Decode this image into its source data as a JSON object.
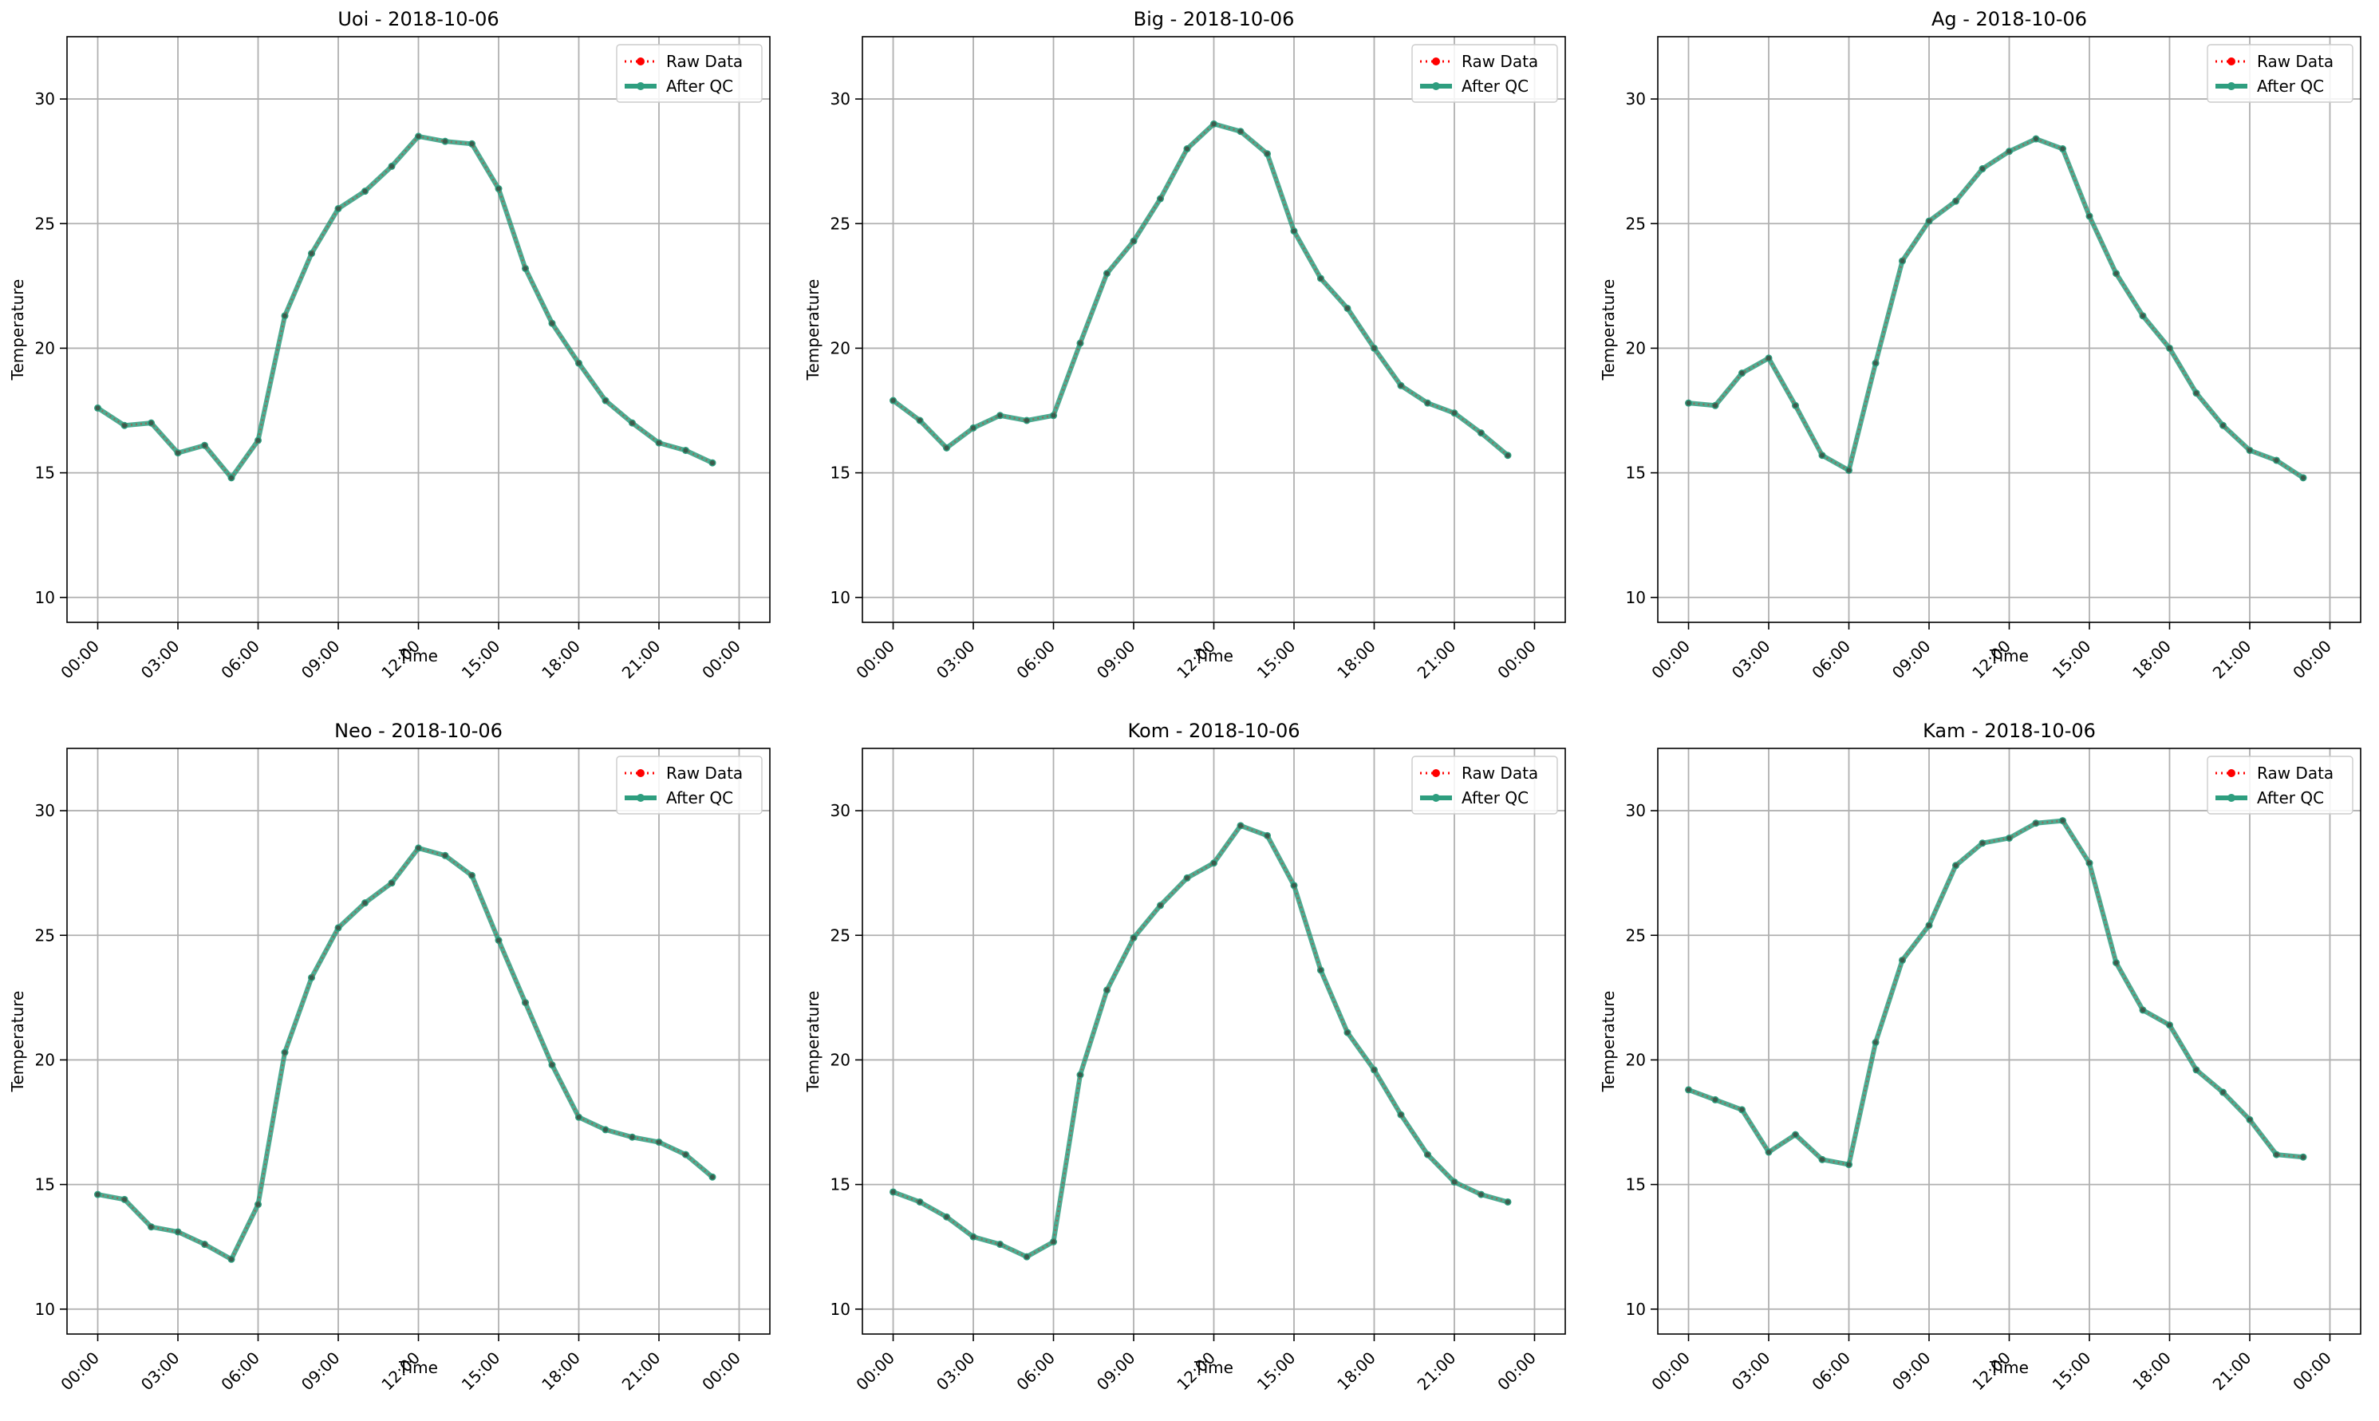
{
  "legend_raw_label": "Raw Data",
  "legend_qc_label": "After QC",
  "colors": {
    "raw": "#ff0000",
    "qc": "#2e9e7f",
    "grid": "#b0b0b0",
    "axis": "#000000"
  },
  "chart_data": [
    {
      "type": "line",
      "title": "Uoi - 2018-10-06",
      "xlabel": "Time",
      "ylabel": "Temperature",
      "x_ticks": [
        "00:00",
        "03:00",
        "06:00",
        "09:00",
        "12:00",
        "15:00",
        "18:00",
        "21:00",
        "00:00"
      ],
      "y_ticks": [
        10,
        15,
        20,
        25,
        30
      ],
      "ylim": [
        9,
        32.5
      ],
      "x": [
        "00:00",
        "01:00",
        "02:00",
        "03:00",
        "04:00",
        "05:00",
        "06:00",
        "07:00",
        "08:00",
        "09:00",
        "10:00",
        "11:00",
        "12:00",
        "13:00",
        "14:00",
        "15:00",
        "16:00",
        "17:00",
        "18:00",
        "19:00",
        "20:00",
        "21:00",
        "22:00",
        "23:00"
      ],
      "grid": true,
      "legend_position": "upper right",
      "series": [
        {
          "name": "Raw Data",
          "values": [
            17.6,
            16.9,
            17.0,
            15.8,
            16.1,
            14.8,
            16.3,
            21.3,
            23.8,
            25.6,
            26.3,
            27.3,
            28.5,
            28.3,
            28.2,
            26.4,
            23.2,
            21.0,
            19.4,
            17.9,
            17.0,
            16.2,
            15.9,
            15.4
          ]
        },
        {
          "name": "After QC",
          "values": [
            17.6,
            16.9,
            17.0,
            15.8,
            16.1,
            14.8,
            16.3,
            21.3,
            23.8,
            25.6,
            26.3,
            27.3,
            28.5,
            28.3,
            28.2,
            26.4,
            23.2,
            21.0,
            19.4,
            17.9,
            17.0,
            16.2,
            15.9,
            15.4
          ]
        }
      ]
    },
    {
      "type": "line",
      "title": "Big - 2018-10-06",
      "xlabel": "Time",
      "ylabel": "Temperature",
      "x_ticks": [
        "00:00",
        "03:00",
        "06:00",
        "09:00",
        "12:00",
        "15:00",
        "18:00",
        "21:00",
        "00:00"
      ],
      "y_ticks": [
        10,
        15,
        20,
        25,
        30
      ],
      "ylim": [
        9,
        32.5
      ],
      "x": [
        "00:00",
        "01:00",
        "02:00",
        "03:00",
        "04:00",
        "05:00",
        "06:00",
        "07:00",
        "08:00",
        "09:00",
        "10:00",
        "11:00",
        "12:00",
        "13:00",
        "14:00",
        "15:00",
        "16:00",
        "17:00",
        "18:00",
        "19:00",
        "20:00",
        "21:00",
        "22:00",
        "23:00"
      ],
      "grid": true,
      "legend_position": "upper right",
      "series": [
        {
          "name": "Raw Data",
          "values": [
            17.9,
            17.1,
            16.0,
            16.8,
            17.3,
            17.1,
            17.3,
            20.2,
            23.0,
            24.3,
            26.0,
            28.0,
            29.0,
            28.7,
            27.8,
            24.7,
            22.8,
            21.6,
            20.0,
            18.5,
            17.8,
            17.4,
            16.6,
            15.7
          ]
        },
        {
          "name": "After QC",
          "values": [
            17.9,
            17.1,
            16.0,
            16.8,
            17.3,
            17.1,
            17.3,
            20.2,
            23.0,
            24.3,
            26.0,
            28.0,
            29.0,
            28.7,
            27.8,
            24.7,
            22.8,
            21.6,
            20.0,
            18.5,
            17.8,
            17.4,
            16.6,
            15.7
          ]
        }
      ]
    },
    {
      "type": "line",
      "title": "Ag - 2018-10-06",
      "xlabel": "Time",
      "ylabel": "Temperature",
      "x_ticks": [
        "00:00",
        "03:00",
        "06:00",
        "09:00",
        "12:00",
        "15:00",
        "18:00",
        "21:00",
        "00:00"
      ],
      "y_ticks": [
        10,
        15,
        20,
        25,
        30
      ],
      "ylim": [
        9,
        32.5
      ],
      "x": [
        "00:00",
        "01:00",
        "02:00",
        "03:00",
        "04:00",
        "05:00",
        "06:00",
        "07:00",
        "08:00",
        "09:00",
        "10:00",
        "11:00",
        "12:00",
        "13:00",
        "14:00",
        "15:00",
        "16:00",
        "17:00",
        "18:00",
        "19:00",
        "20:00",
        "21:00",
        "22:00",
        "23:00"
      ],
      "grid": true,
      "legend_position": "upper right",
      "series": [
        {
          "name": "Raw Data",
          "values": [
            17.8,
            17.7,
            19.0,
            19.6,
            17.7,
            15.7,
            15.1,
            19.4,
            23.5,
            25.1,
            25.9,
            27.2,
            27.9,
            28.4,
            28.0,
            25.3,
            23.0,
            21.3,
            20.0,
            18.2,
            16.9,
            15.9,
            15.5,
            14.8
          ]
        },
        {
          "name": "After QC",
          "values": [
            17.8,
            17.7,
            19.0,
            19.6,
            17.7,
            15.7,
            15.1,
            19.4,
            23.5,
            25.1,
            25.9,
            27.2,
            27.9,
            28.4,
            28.0,
            25.3,
            23.0,
            21.3,
            20.0,
            18.2,
            16.9,
            15.9,
            15.5,
            14.8
          ]
        }
      ]
    },
    {
      "type": "line",
      "title": "Neo - 2018-10-06",
      "xlabel": "Time",
      "ylabel": "Temperature",
      "x_ticks": [
        "00:00",
        "03:00",
        "06:00",
        "09:00",
        "12:00",
        "15:00",
        "18:00",
        "21:00",
        "00:00"
      ],
      "y_ticks": [
        10,
        15,
        20,
        25,
        30
      ],
      "ylim": [
        9,
        32.5
      ],
      "x": [
        "00:00",
        "01:00",
        "02:00",
        "03:00",
        "04:00",
        "05:00",
        "06:00",
        "07:00",
        "08:00",
        "09:00",
        "10:00",
        "11:00",
        "12:00",
        "13:00",
        "14:00",
        "15:00",
        "16:00",
        "17:00",
        "18:00",
        "19:00",
        "20:00",
        "21:00",
        "22:00",
        "23:00"
      ],
      "grid": true,
      "legend_position": "upper right",
      "series": [
        {
          "name": "Raw Data",
          "values": [
            14.6,
            14.4,
            13.3,
            13.1,
            12.6,
            12.0,
            14.2,
            20.3,
            23.3,
            25.3,
            26.3,
            27.1,
            28.5,
            28.2,
            27.4,
            24.8,
            22.3,
            19.8,
            17.7,
            17.2,
            16.9,
            16.7,
            16.2,
            15.3
          ]
        },
        {
          "name": "After QC",
          "values": [
            14.6,
            14.4,
            13.3,
            13.1,
            12.6,
            12.0,
            14.2,
            20.3,
            23.3,
            25.3,
            26.3,
            27.1,
            28.5,
            28.2,
            27.4,
            24.8,
            22.3,
            19.8,
            17.7,
            17.2,
            16.9,
            16.7,
            16.2,
            15.3
          ]
        }
      ]
    },
    {
      "type": "line",
      "title": "Kom - 2018-10-06",
      "xlabel": "Time",
      "ylabel": "Temperature",
      "x_ticks": [
        "00:00",
        "03:00",
        "06:00",
        "09:00",
        "12:00",
        "15:00",
        "18:00",
        "21:00",
        "00:00"
      ],
      "y_ticks": [
        10,
        15,
        20,
        25,
        30
      ],
      "ylim": [
        9,
        32.5
      ],
      "x": [
        "00:00",
        "01:00",
        "02:00",
        "03:00",
        "04:00",
        "05:00",
        "06:00",
        "07:00",
        "08:00",
        "09:00",
        "10:00",
        "11:00",
        "12:00",
        "13:00",
        "14:00",
        "15:00",
        "16:00",
        "17:00",
        "18:00",
        "19:00",
        "20:00",
        "21:00",
        "22:00",
        "23:00"
      ],
      "grid": true,
      "legend_position": "upper right",
      "series": [
        {
          "name": "Raw Data",
          "values": [
            14.7,
            14.3,
            13.7,
            12.9,
            12.6,
            12.1,
            12.7,
            19.4,
            22.8,
            24.9,
            26.2,
            27.3,
            27.9,
            29.4,
            29.0,
            27.0,
            23.6,
            21.1,
            19.6,
            17.8,
            16.2,
            15.1,
            14.6,
            14.3
          ]
        },
        {
          "name": "After QC",
          "values": [
            14.7,
            14.3,
            13.7,
            12.9,
            12.6,
            12.1,
            12.7,
            19.4,
            22.8,
            24.9,
            26.2,
            27.3,
            27.9,
            29.4,
            29.0,
            27.0,
            23.6,
            21.1,
            19.6,
            17.8,
            16.2,
            15.1,
            14.6,
            14.3
          ]
        }
      ]
    },
    {
      "type": "line",
      "title": "Kam - 2018-10-06",
      "xlabel": "Time",
      "ylabel": "Temperature",
      "x_ticks": [
        "00:00",
        "03:00",
        "06:00",
        "09:00",
        "12:00",
        "15:00",
        "18:00",
        "21:00",
        "00:00"
      ],
      "y_ticks": [
        10,
        15,
        20,
        25,
        30
      ],
      "ylim": [
        9,
        32.5
      ],
      "x": [
        "00:00",
        "01:00",
        "02:00",
        "03:00",
        "04:00",
        "05:00",
        "06:00",
        "07:00",
        "08:00",
        "09:00",
        "10:00",
        "11:00",
        "12:00",
        "13:00",
        "14:00",
        "15:00",
        "16:00",
        "17:00",
        "18:00",
        "19:00",
        "20:00",
        "21:00",
        "22:00",
        "23:00"
      ],
      "grid": true,
      "legend_position": "upper right",
      "series": [
        {
          "name": "Raw Data",
          "values": [
            18.8,
            18.4,
            18.0,
            16.3,
            17.0,
            16.0,
            15.8,
            20.7,
            24.0,
            25.4,
            27.8,
            28.7,
            28.9,
            29.5,
            29.6,
            27.9,
            23.9,
            22.0,
            21.4,
            19.6,
            18.7,
            17.6,
            16.2,
            16.1
          ]
        },
        {
          "name": "After QC",
          "values": [
            18.8,
            18.4,
            18.0,
            16.3,
            17.0,
            16.0,
            15.8,
            20.7,
            24.0,
            25.4,
            27.8,
            28.7,
            28.9,
            29.5,
            29.6,
            27.9,
            23.9,
            22.0,
            21.4,
            19.6,
            18.7,
            17.6,
            16.2,
            16.1
          ]
        }
      ]
    }
  ]
}
